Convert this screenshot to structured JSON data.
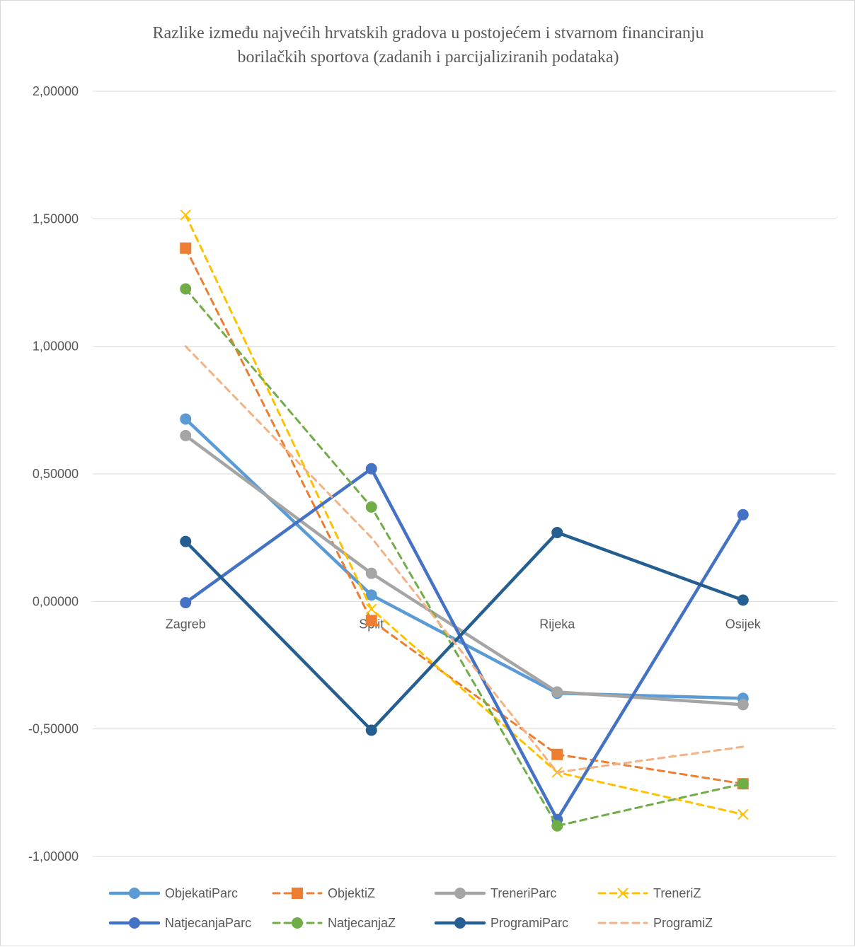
{
  "chart_data": {
    "type": "line",
    "title": "Razlike između najvećih hrvatskih gradova u postojećem i stvarnom financiranju borilačkih sportova (zadanih i parcijaliziranih podataka)",
    "title_lines": [
      "Razlike između najvećih hrvatskih gradova u postojećem i stvarnom financiranju",
      "borilačkih sportova (zadanih i parcijaliziranih podataka)"
    ],
    "categories": [
      "Zagreb",
      "Split",
      "Rijeka",
      "Osijek"
    ],
    "ylim": [
      -1.0,
      2.0
    ],
    "yticks": [
      2.0,
      1.5,
      1.0,
      0.5,
      0.0,
      -0.5,
      -1.0
    ],
    "ytick_labels": [
      "2,00000",
      "1,50000",
      "1,00000",
      "0,50000",
      "0,00000",
      "-0,50000",
      "-1,00000"
    ],
    "grid": true,
    "legend_position": "bottom",
    "series": [
      {
        "name": "ObjekatiParc",
        "values": [
          0.715,
          0.025,
          -0.36,
          -0.38
        ],
        "color": "#5B9BD5",
        "dash": false,
        "marker": "circle"
      },
      {
        "name": "ObjektiZ",
        "values": [
          1.385,
          -0.075,
          -0.6,
          -0.715
        ],
        "color": "#ED7D31",
        "dash": true,
        "marker": "square"
      },
      {
        "name": "TreneriParc",
        "values": [
          0.65,
          0.11,
          -0.355,
          -0.405
        ],
        "color": "#A5A5A5",
        "dash": false,
        "marker": "circle"
      },
      {
        "name": "TreneriZ",
        "values": [
          1.515,
          -0.03,
          -0.67,
          -0.835
        ],
        "color": "#FFC000",
        "dash": true,
        "marker": "x"
      },
      {
        "name": "NatjecanjaParc",
        "values": [
          -0.005,
          0.52,
          -0.855,
          0.34
        ],
        "color": "#4472C4",
        "dash": false,
        "marker": "circle"
      },
      {
        "name": "NatjecanjaZ",
        "values": [
          1.225,
          0.37,
          -0.88,
          -0.715
        ],
        "color": "#70AD47",
        "dash": true,
        "marker": "circle"
      },
      {
        "name": "ProgramiParc",
        "values": [
          0.235,
          -0.505,
          0.27,
          0.005
        ],
        "color": "#255E91",
        "dash": false,
        "marker": "circle"
      },
      {
        "name": "ProgramiZ",
        "values": [
          1.0,
          0.25,
          -0.67,
          -0.57
        ],
        "color": "#F4B183",
        "dash": true,
        "marker": "none"
      }
    ]
  }
}
